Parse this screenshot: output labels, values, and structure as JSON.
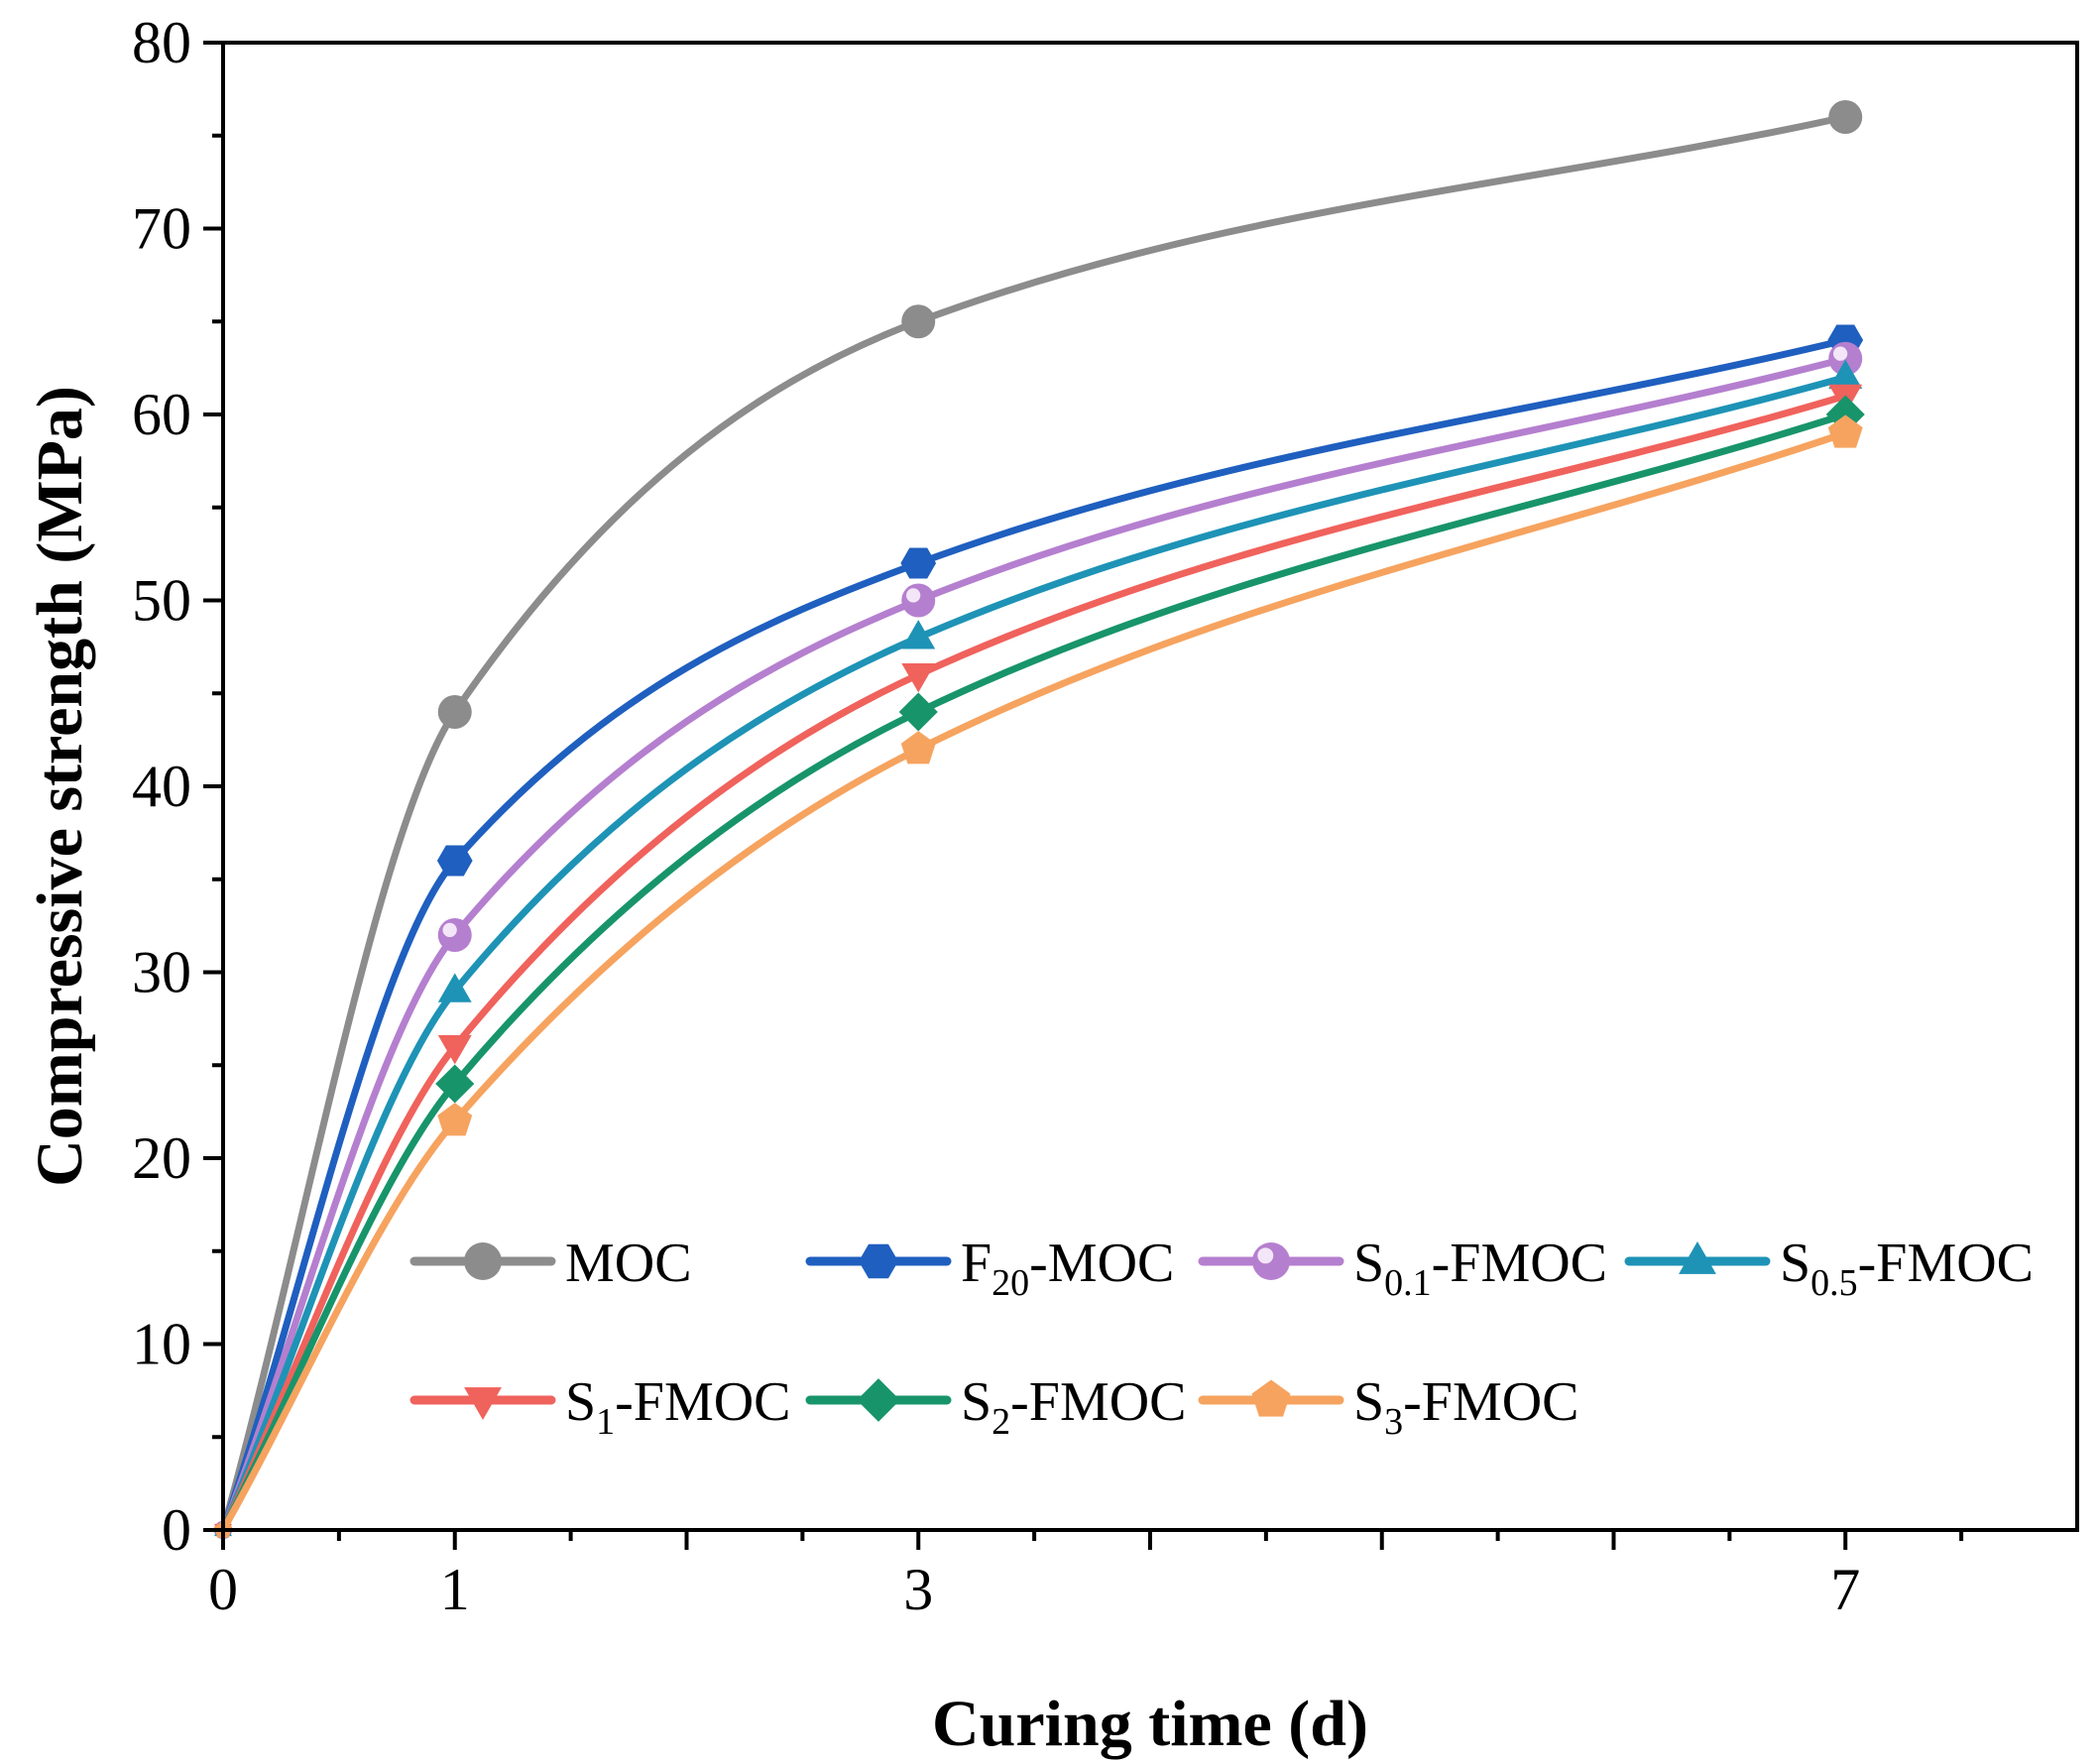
{
  "chart_data": {
    "type": "line",
    "title": "",
    "xlabel": "Curing time (d)",
    "ylabel": "Compressive strength (MPa)",
    "xlim": [
      0,
      8
    ],
    "ylim": [
      0,
      80
    ],
    "x": [
      0,
      1,
      3,
      7
    ],
    "x_ticks": [
      0,
      1,
      3,
      7
    ],
    "x_tick_labels": [
      "0",
      "1",
      "3",
      "7"
    ],
    "y_ticks": [
      0,
      10,
      20,
      30,
      40,
      50,
      60,
      70,
      80
    ],
    "y_tick_labels": [
      "0",
      "10",
      "20",
      "30",
      "40",
      "50",
      "60",
      "70",
      "80"
    ],
    "grid": false,
    "legend_position": "bottom-right",
    "series": [
      {
        "name": "MOC",
        "legend": {
          "base": "MOC",
          "sub": "",
          "suffix": ""
        },
        "values": [
          0,
          44,
          65,
          76
        ],
        "color": "#8c8c8c",
        "marker": "circle"
      },
      {
        "name": "F20-MOC",
        "legend": {
          "base": "F",
          "sub": "20",
          "suffix": "-MOC"
        },
        "values": [
          0,
          36,
          52,
          64
        ],
        "color": "#1f5fbf",
        "marker": "hexagon"
      },
      {
        "name": "S0.1-FMOC",
        "legend": {
          "base": "S",
          "sub": "0.1",
          "suffix": "-FMOC"
        },
        "values": [
          0,
          32,
          50,
          63
        ],
        "color": "#b57fcf",
        "marker": "sphere"
      },
      {
        "name": "S0.5-FMOC",
        "legend": {
          "base": "S",
          "sub": "0.5",
          "suffix": "-FMOC"
        },
        "values": [
          0,
          29,
          48,
          62
        ],
        "color": "#1e93b6",
        "marker": "triangle-up"
      },
      {
        "name": "S1-FMOC",
        "legend": {
          "base": "S",
          "sub": "1",
          "suffix": "-FMOC"
        },
        "values": [
          0,
          26,
          46,
          61
        ],
        "color": "#f0625c",
        "marker": "triangle-down"
      },
      {
        "name": "S2-FMOC",
        "legend": {
          "base": "S",
          "sub": "2",
          "suffix": "-FMOC"
        },
        "values": [
          0,
          24,
          44,
          60
        ],
        "color": "#18946b",
        "marker": "diamond"
      },
      {
        "name": "S3-FMOC",
        "legend": {
          "base": "S",
          "sub": "3",
          "suffix": "-FMOC"
        },
        "values": [
          0,
          22,
          42,
          59
        ],
        "color": "#f6a35f",
        "marker": "pentagon"
      }
    ]
  }
}
